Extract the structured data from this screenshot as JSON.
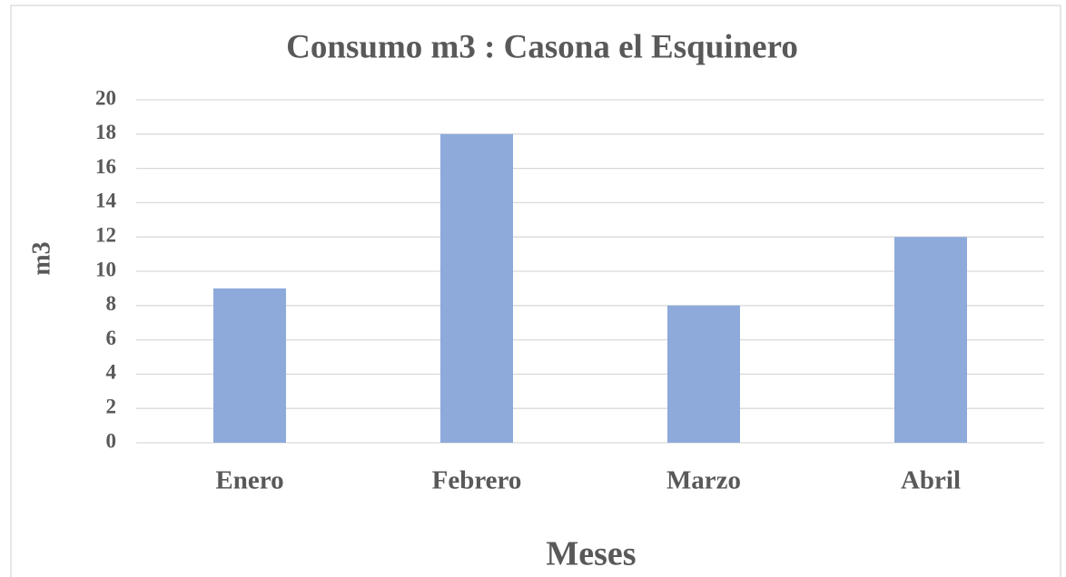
{
  "chart_data": {
    "type": "bar",
    "title": "Consumo m3 : Casona el Esquinero",
    "y_label": "m3",
    "x_label": "Meses",
    "categories": [
      "Enero",
      "Febrero",
      "Marzo",
      "Abril"
    ],
    "values": [
      9,
      18,
      8,
      12
    ],
    "color": "#8eaadb",
    "ylim": [
      0,
      20
    ],
    "yticks": [
      0,
      2,
      4,
      6,
      8,
      10,
      12,
      14,
      16,
      18,
      20
    ],
    "grid": true
  }
}
